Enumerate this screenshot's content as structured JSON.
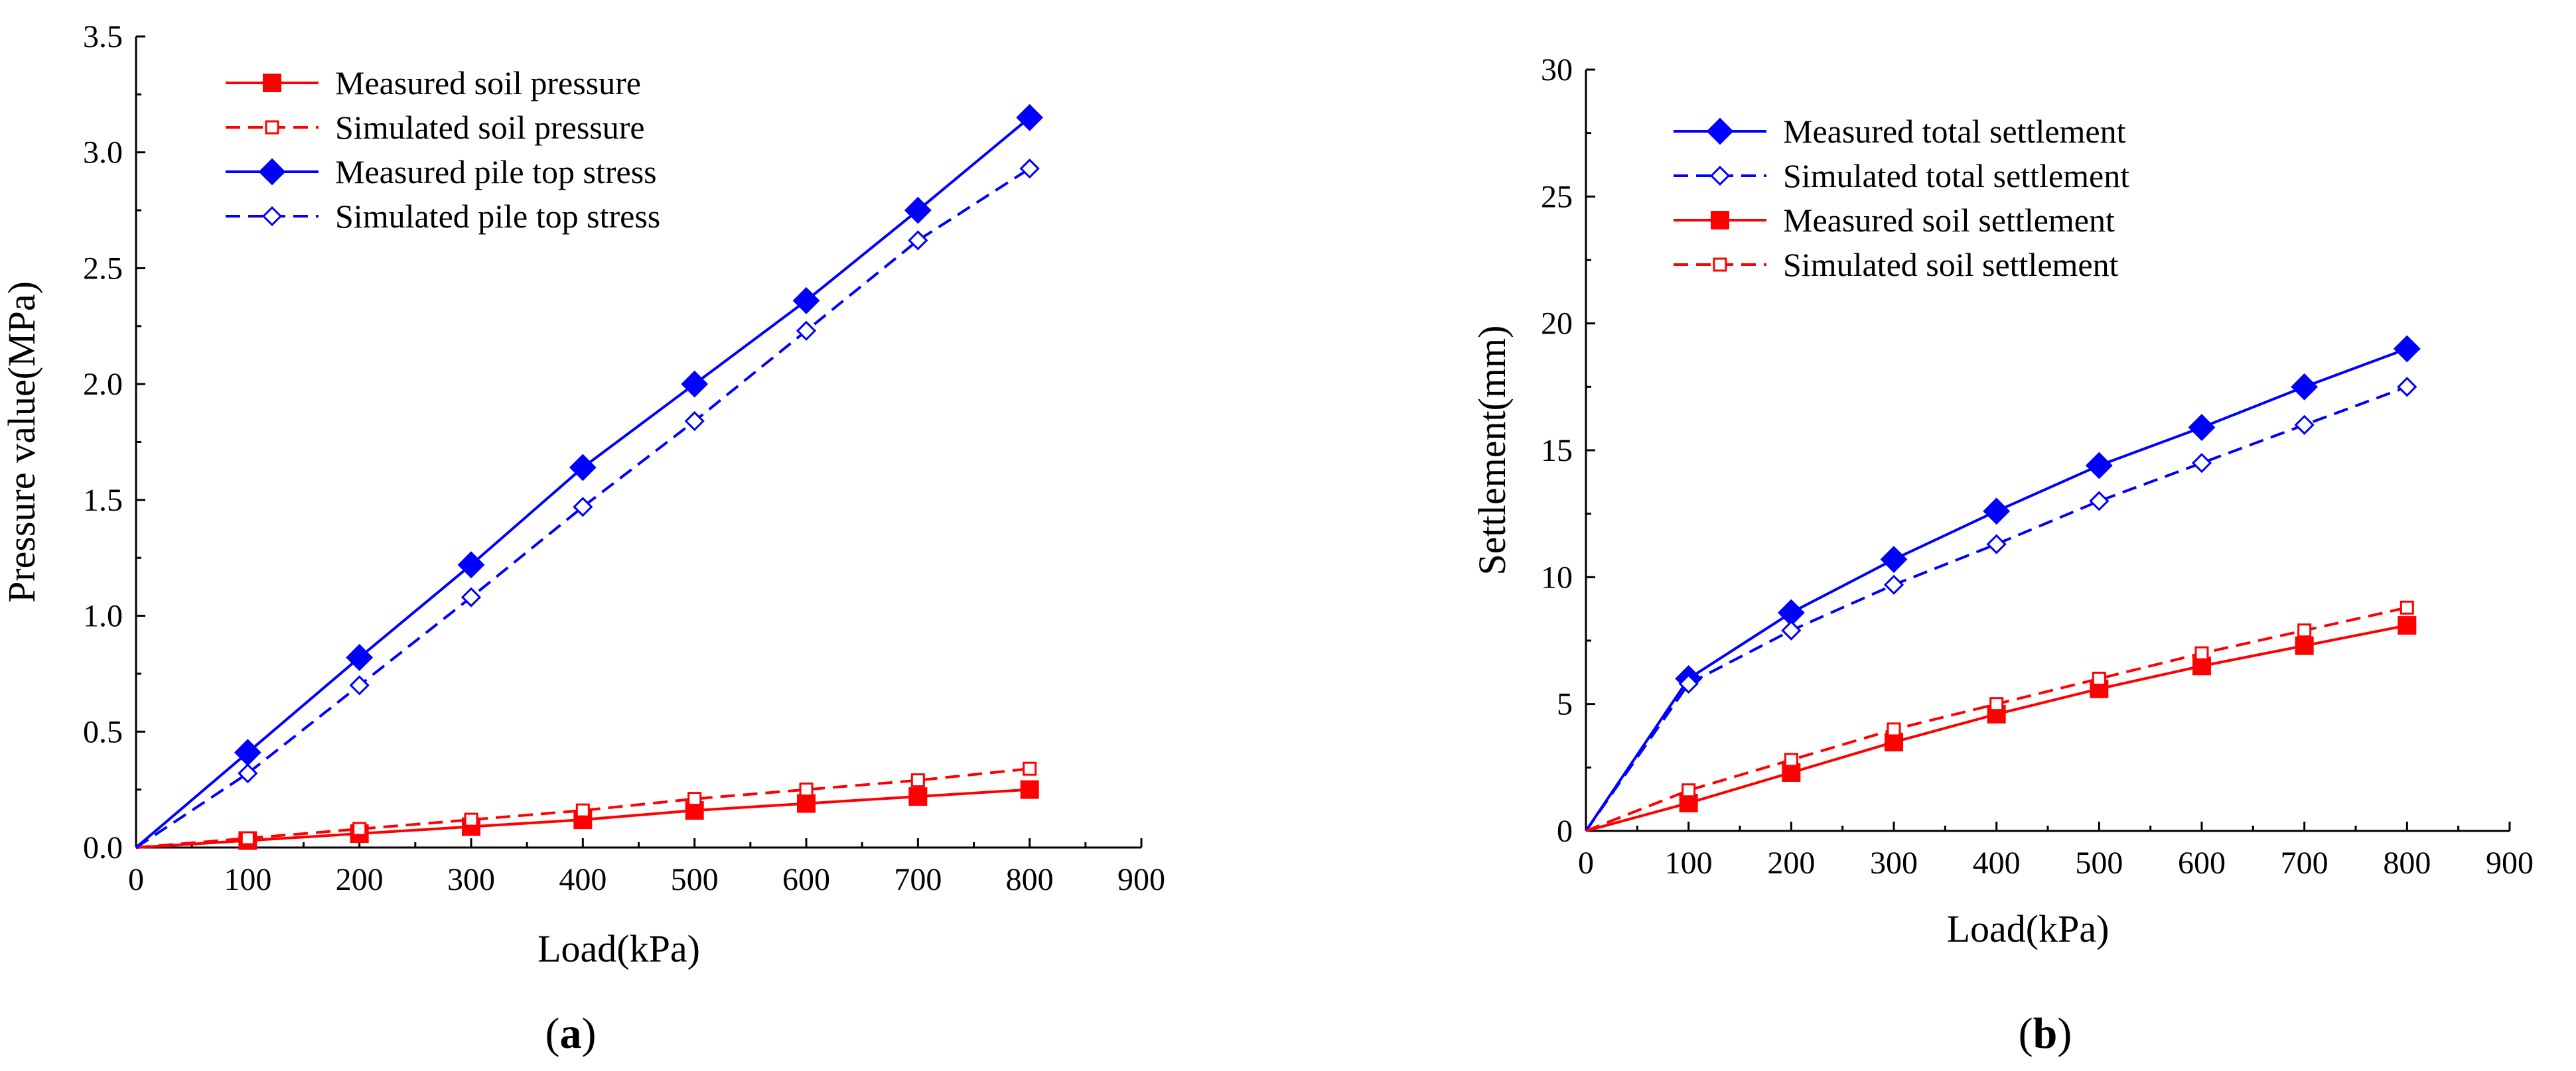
{
  "chart_data": [
    {
      "type": "line",
      "panel_label": "a",
      "xlabel": "Load(kPa)",
      "ylabel": "Pressure value(MPa)",
      "xlim": [
        0,
        900
      ],
      "ylim": [
        0,
        3.5
      ],
      "xticks": [
        "0",
        "100",
        "200",
        "300",
        "400",
        "500",
        "600",
        "700",
        "800",
        "900"
      ],
      "yticks": [
        "0.0",
        "0.5",
        "1.0",
        "1.5",
        "2.0",
        "2.5",
        "3.0",
        "3.5"
      ],
      "grid": false,
      "legend_position": "top-left",
      "x": [
        0,
        100,
        200,
        300,
        400,
        500,
        600,
        700,
        800
      ],
      "series": [
        {
          "name": "Measured soil pressure",
          "color": "#ff0000",
          "dashed": false,
          "marker": "square",
          "filled": true,
          "values": [
            0,
            0.03,
            0.06,
            0.09,
            0.12,
            0.16,
            0.19,
            0.22,
            0.25
          ]
        },
        {
          "name": "Simulated soil pressure",
          "color": "#ff0000",
          "dashed": true,
          "marker": "square",
          "filled": false,
          "values": [
            0,
            0.04,
            0.08,
            0.12,
            0.16,
            0.21,
            0.25,
            0.29,
            0.34
          ]
        },
        {
          "name": "Measured pile top stress",
          "color": "#0000ff",
          "dashed": false,
          "marker": "diamond",
          "filled": true,
          "values": [
            0,
            0.41,
            0.82,
            1.22,
            1.64,
            2.0,
            2.36,
            2.75,
            3.15
          ]
        },
        {
          "name": "Simulated pile top stress",
          "color": "#0000ff",
          "dashed": true,
          "marker": "diamond",
          "filled": false,
          "values": [
            0,
            0.32,
            0.7,
            1.08,
            1.47,
            1.84,
            2.23,
            2.62,
            2.93
          ]
        }
      ]
    },
    {
      "type": "line",
      "panel_label": "b",
      "xlabel": "Load(kPa)",
      "ylabel": "Settlement(mm)",
      "xlim": [
        0,
        900
      ],
      "ylim": [
        0,
        30
      ],
      "xticks": [
        "0",
        "100",
        "200",
        "300",
        "400",
        "500",
        "600",
        "700",
        "800",
        "900"
      ],
      "yticks": [
        "0",
        "5",
        "10",
        "15",
        "20",
        "25",
        "30"
      ],
      "grid": false,
      "legend_position": "top-left",
      "x": [
        0,
        100,
        200,
        300,
        400,
        500,
        600,
        700,
        800
      ],
      "series": [
        {
          "name": "Measured total settlement",
          "color": "#0000ff",
          "dashed": false,
          "marker": "diamond",
          "filled": true,
          "values": [
            0,
            6.0,
            8.6,
            10.7,
            12.6,
            14.4,
            15.9,
            17.5,
            19.0
          ]
        },
        {
          "name": "Simulated total settlement",
          "color": "#0000ff",
          "dashed": true,
          "marker": "diamond",
          "filled": false,
          "values": [
            0,
            5.8,
            7.9,
            9.7,
            11.3,
            13.0,
            14.5,
            16.0,
            17.5
          ]
        },
        {
          "name": "Measured soil settlement",
          "color": "#ff0000",
          "dashed": false,
          "marker": "square",
          "filled": true,
          "values": [
            0,
            1.1,
            2.3,
            3.5,
            4.6,
            5.6,
            6.5,
            7.3,
            8.1
          ]
        },
        {
          "name": "Simulated soil settlement",
          "color": "#ff0000",
          "dashed": true,
          "marker": "square",
          "filled": false,
          "values": [
            0,
            1.6,
            2.8,
            4.0,
            5.0,
            6.0,
            7.0,
            7.9,
            8.8
          ]
        }
      ]
    }
  ]
}
